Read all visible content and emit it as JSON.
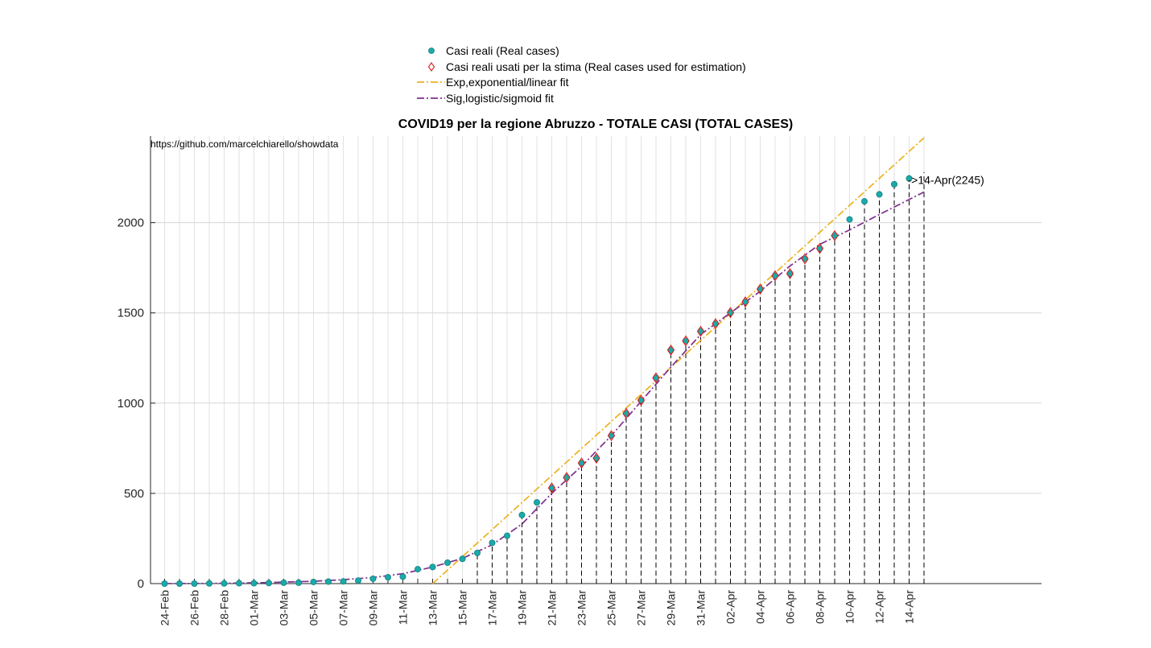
{
  "chart_data": {
    "type": "scatter",
    "title": "COVID19 per la regione Abruzzo - TOTALE CASI (TOTAL CASES)",
    "watermark": "https://github.com/marcelchiarello/showdata",
    "xlabel": "",
    "ylabel": "",
    "ylim": [
      0,
      2480
    ],
    "yticks": [
      0,
      500,
      1000,
      1500,
      2000
    ],
    "grid": true,
    "legend_position": "top-center",
    "x_dates": [
      "24-Feb",
      "25-Feb",
      "26-Feb",
      "27-Feb",
      "28-Feb",
      "29-Feb",
      "01-Mar",
      "02-Mar",
      "03-Mar",
      "04-Mar",
      "05-Mar",
      "06-Mar",
      "07-Mar",
      "08-Mar",
      "09-Mar",
      "10-Mar",
      "11-Mar",
      "12-Mar",
      "13-Mar",
      "14-Mar",
      "15-Mar",
      "16-Mar",
      "17-Mar",
      "18-Mar",
      "19-Mar",
      "20-Mar",
      "21-Mar",
      "22-Mar",
      "23-Mar",
      "24-Mar",
      "25-Mar",
      "26-Mar",
      "27-Mar",
      "28-Mar",
      "29-Mar",
      "30-Mar",
      "31-Mar",
      "01-Apr",
      "02-Apr",
      "03-Apr",
      "04-Apr",
      "05-Apr",
      "06-Apr",
      "07-Apr",
      "08-Apr",
      "09-Apr",
      "10-Apr",
      "11-Apr",
      "12-Apr",
      "13-Apr",
      "14-Apr",
      "15-Apr"
    ],
    "x_tick_labels": [
      "24-Feb",
      "26-Feb",
      "28-Feb",
      "01-Mar",
      "03-Mar",
      "05-Mar",
      "07-Mar",
      "09-Mar",
      "11-Mar",
      "13-Mar",
      "15-Mar",
      "17-Mar",
      "19-Mar",
      "21-Mar",
      "23-Mar",
      "25-Mar",
      "27-Mar",
      "29-Mar",
      "31-Mar",
      "02-Apr",
      "04-Apr",
      "06-Apr",
      "08-Apr",
      "10-Apr",
      "12-Apr",
      "14-Apr"
    ],
    "series": [
      {
        "name": "Casi reali (Real cases)",
        "kind": "points",
        "color": "#1aaaaa",
        "x": [
          "24-Feb",
          "25-Feb",
          "26-Feb",
          "27-Feb",
          "28-Feb",
          "29-Feb",
          "01-Mar",
          "02-Mar",
          "03-Mar",
          "04-Mar",
          "05-Mar",
          "06-Mar",
          "07-Mar",
          "08-Mar",
          "09-Mar",
          "10-Mar",
          "11-Mar",
          "12-Mar",
          "13-Mar",
          "14-Mar",
          "15-Mar",
          "16-Mar",
          "17-Mar",
          "18-Mar",
          "19-Mar",
          "20-Mar",
          "21-Mar",
          "22-Mar",
          "23-Mar",
          "24-Mar",
          "25-Mar",
          "26-Mar",
          "27-Mar",
          "28-Mar",
          "29-Mar",
          "30-Mar",
          "31-Mar",
          "01-Apr",
          "02-Apr",
          "03-Apr",
          "04-Apr",
          "05-Apr",
          "06-Apr",
          "07-Apr",
          "08-Apr",
          "09-Apr",
          "10-Apr",
          "11-Apr",
          "12-Apr",
          "13-Apr",
          "14-Apr"
        ],
        "y": [
          0,
          0,
          0,
          1,
          1,
          2,
          2,
          3,
          5,
          5,
          9,
          11,
          12,
          17,
          27,
          35,
          38,
          80,
          92,
          116,
          137,
          170,
          226,
          265,
          380,
          450,
          530,
          588,
          668,
          695,
          820,
          943,
          1016,
          1140,
          1294,
          1345,
          1398,
          1440,
          1502,
          1561,
          1632,
          1706,
          1718,
          1800,
          1857,
          1928,
          2018,
          2118,
          2157,
          2213,
          2245
        ]
      },
      {
        "name": "Casi reali usati per la stima (Real cases used for estimation)",
        "kind": "diamonds",
        "color": "#e02020",
        "x": [
          "21-Mar",
          "22-Mar",
          "23-Mar",
          "24-Mar",
          "25-Mar",
          "26-Mar",
          "27-Mar",
          "28-Mar",
          "29-Mar",
          "30-Mar",
          "31-Mar",
          "01-Apr",
          "02-Apr",
          "03-Apr",
          "04-Apr",
          "05-Apr",
          "06-Apr",
          "07-Apr",
          "08-Apr",
          "09-Apr"
        ],
        "y": [
          530,
          588,
          668,
          695,
          820,
          943,
          1016,
          1140,
          1294,
          1345,
          1398,
          1440,
          1502,
          1561,
          1632,
          1706,
          1718,
          1800,
          1857,
          1928
        ]
      },
      {
        "name": "Exp,exponential/linear fit",
        "kind": "line",
        "color": "#edb120",
        "x": [
          "13-Mar",
          "15-Apr"
        ],
        "y": [
          0,
          2470
        ]
      },
      {
        "name": "Sig,logistic/sigmoid fit",
        "kind": "line",
        "color": "#7e2f8e",
        "x": [
          "24-Feb",
          "28-Feb",
          "02-Mar",
          "05-Mar",
          "07-Mar",
          "09-Mar",
          "11-Mar",
          "13-Mar",
          "15-Mar",
          "17-Mar",
          "19-Mar",
          "21-Mar",
          "23-Mar",
          "25-Mar",
          "27-Mar",
          "29-Mar",
          "31-Mar",
          "02-Apr",
          "04-Apr",
          "06-Apr",
          "08-Apr",
          "10-Apr",
          "12-Apr",
          "15-Apr"
        ],
        "y": [
          0,
          2,
          6,
          13,
          22,
          34,
          55,
          92,
          140,
          215,
          330,
          500,
          650,
          820,
          1010,
          1200,
          1380,
          1500,
          1620,
          1760,
          1880,
          1960,
          2045,
          2170
        ]
      }
    ],
    "annotations": [
      {
        "x": "14-Apr",
        "y": 2245,
        "text": "->14-Apr(2245)"
      }
    ]
  }
}
